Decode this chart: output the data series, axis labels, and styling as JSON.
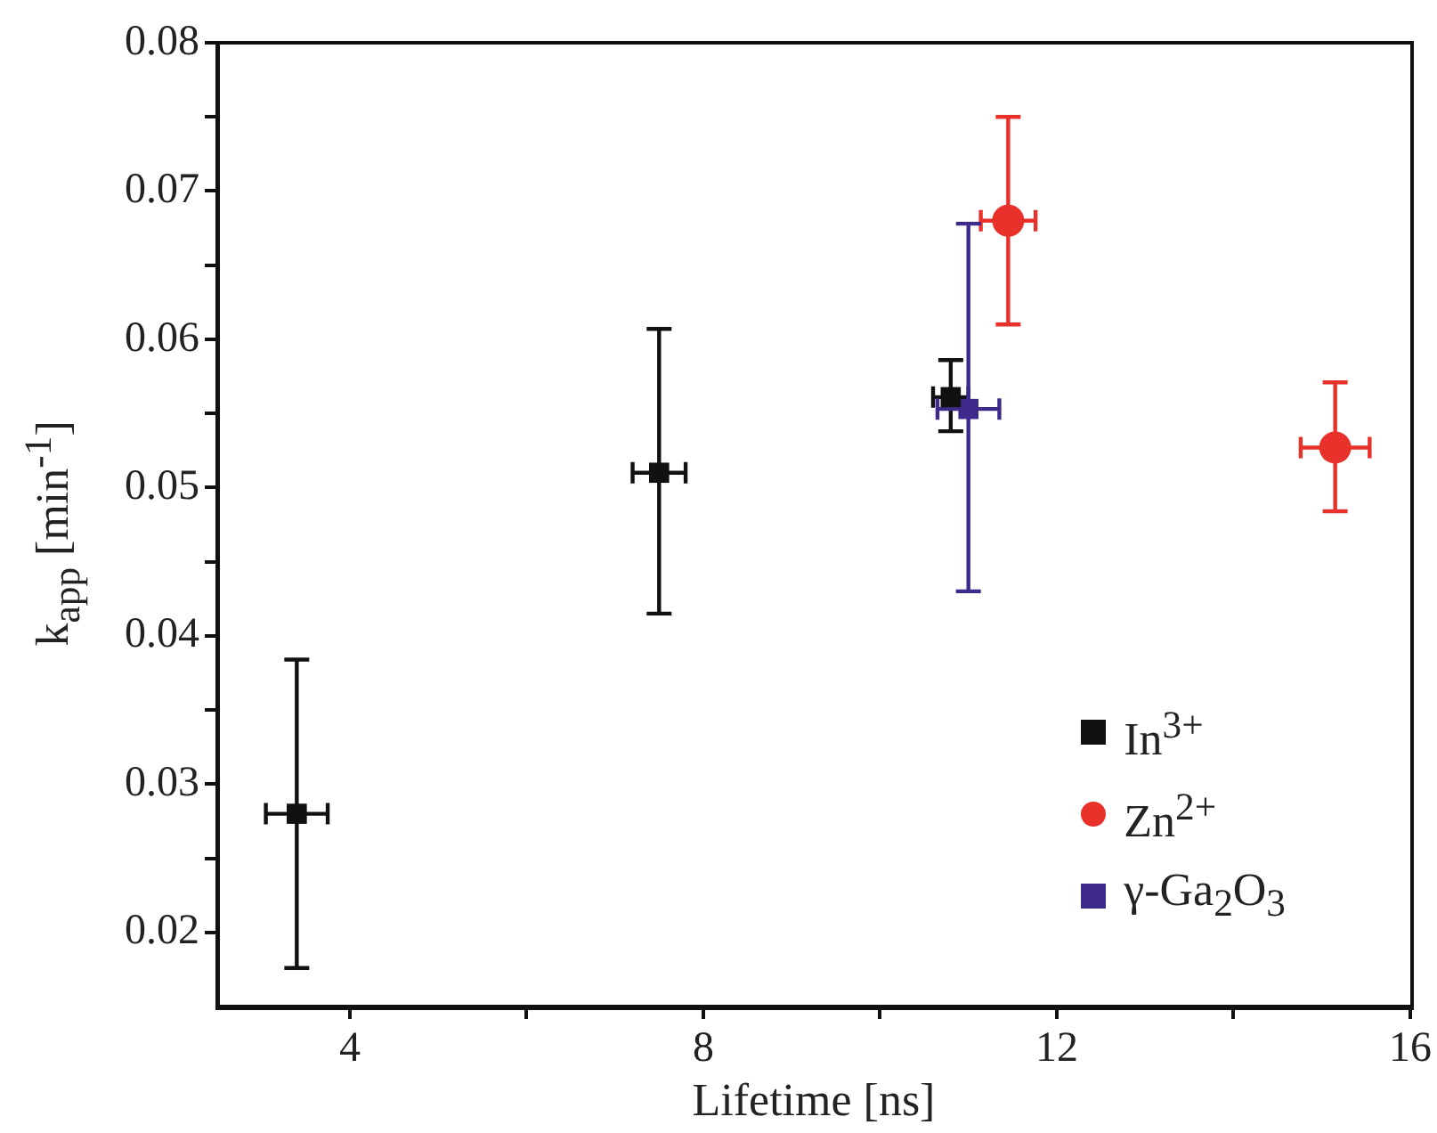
{
  "chart_data": {
    "type": "scatter",
    "xlabel": "Lifetime [ns]",
    "ylabel": "k$_{app}$ [min$^{-1}$]",
    "xlim": [
      2.5,
      16
    ],
    "xticks": [
      4,
      {
        "value": 6,
        "label": null
      },
      8,
      {
        "value": 10,
        "label": null
      },
      12,
      {
        "value": 14,
        "label": null
      },
      16
    ],
    "ylim": [
      0.015,
      0.08
    ],
    "yticks": [
      0.02,
      {
        "value": 0.025,
        "label": null
      },
      0.03,
      {
        "value": 0.035,
        "label": null
      },
      0.04,
      {
        "value": 0.045,
        "label": null
      },
      0.05,
      {
        "value": 0.055,
        "label": null
      },
      0.06,
      {
        "value": 0.065,
        "label": null
      },
      0.07,
      {
        "value": 0.075,
        "label": null
      },
      0.08
    ],
    "grid": false,
    "legend": "bottom right",
    "series": [
      {
        "name": "In$^{3+}$",
        "color": "#111111",
        "marker": "square",
        "x": [
          3.4,
          7.5,
          10.8
        ],
        "values": [
          0.028,
          0.051,
          0.0561
        ],
        "errors": [
          [
            0.0176,
            0.0384
          ],
          [
            0.0415,
            0.0607
          ],
          [
            0.0538,
            0.0586
          ]
        ],
        "xerrors": [
          0.35,
          0.3,
          0.2
        ]
      },
      {
        "name": "Zn$^{2+}$",
        "color": "#e8312a",
        "marker": "circle",
        "x": [
          11.45,
          15.15
        ],
        "values": [
          0.068,
          0.0527
        ],
        "errors": [
          [
            0.061,
            0.075
          ],
          [
            0.0484,
            0.0571
          ]
        ],
        "xerrors": [
          0.31,
          0.39
        ]
      },
      {
        "name": "γ-Ga$_{2}$O$_{3}$",
        "color": "#3d2a8a",
        "marker": "square",
        "x": [
          11.0
        ],
        "values": [
          0.0553
        ],
        "errors": [
          [
            0.043,
            0.0678
          ]
        ],
        "xerrors": [
          0.35
        ]
      }
    ]
  }
}
